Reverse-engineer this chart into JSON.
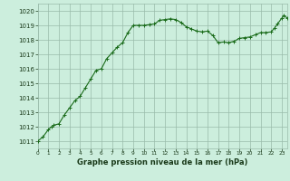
{
  "x": [
    0,
    0.5,
    1,
    1.3,
    1.5,
    2,
    2.5,
    3,
    3.5,
    4,
    4.5,
    5,
    5.5,
    6,
    6.5,
    7,
    7.5,
    8,
    8.5,
    9,
    9.5,
    10,
    10.5,
    11,
    11.5,
    12,
    12.5,
    13,
    13.5,
    14,
    14.5,
    15,
    15.5,
    16,
    16.5,
    17,
    17.5,
    18,
    18.5,
    19,
    19.5,
    20,
    20.5,
    21,
    21.5,
    22,
    22.3,
    22.6,
    23,
    23.2,
    23.5
  ],
  "y": [
    1011.0,
    1011.3,
    1011.8,
    1012.0,
    1012.1,
    1012.2,
    1012.8,
    1013.3,
    1013.8,
    1014.1,
    1014.7,
    1015.3,
    1015.9,
    1016.0,
    1016.7,
    1017.1,
    1017.5,
    1017.8,
    1018.5,
    1019.0,
    1019.0,
    1019.0,
    1019.05,
    1019.1,
    1019.35,
    1019.4,
    1019.45,
    1019.4,
    1019.2,
    1018.9,
    1018.75,
    1018.6,
    1018.55,
    1018.6,
    1018.3,
    1017.8,
    1017.85,
    1017.8,
    1017.9,
    1018.1,
    1018.15,
    1018.2,
    1018.35,
    1018.5,
    1018.5,
    1018.55,
    1018.8,
    1019.1,
    1019.5,
    1019.7,
    1019.5
  ],
  "ylim": [
    1010.5,
    1020.5
  ],
  "xlim": [
    0,
    23.5
  ],
  "yticks": [
    1011,
    1012,
    1013,
    1014,
    1015,
    1016,
    1017,
    1018,
    1019,
    1020
  ],
  "xticks": [
    0,
    1,
    2,
    3,
    4,
    5,
    6,
    7,
    8,
    9,
    10,
    11,
    12,
    13,
    14,
    15,
    16,
    17,
    18,
    19,
    20,
    21,
    22,
    23
  ],
  "line_color": "#1a6b1a",
  "marker_color": "#1a6b1a",
  "bg_color": "#cceedd",
  "grid_color": "#99bbaa",
  "xlabel": "Graphe pression niveau de la mer (hPa)",
  "xlabel_color": "#1a3a1a",
  "tick_label_color": "#1a3a1a",
  "marker": "+",
  "linewidth": 0.8,
  "markersize": 3.5
}
